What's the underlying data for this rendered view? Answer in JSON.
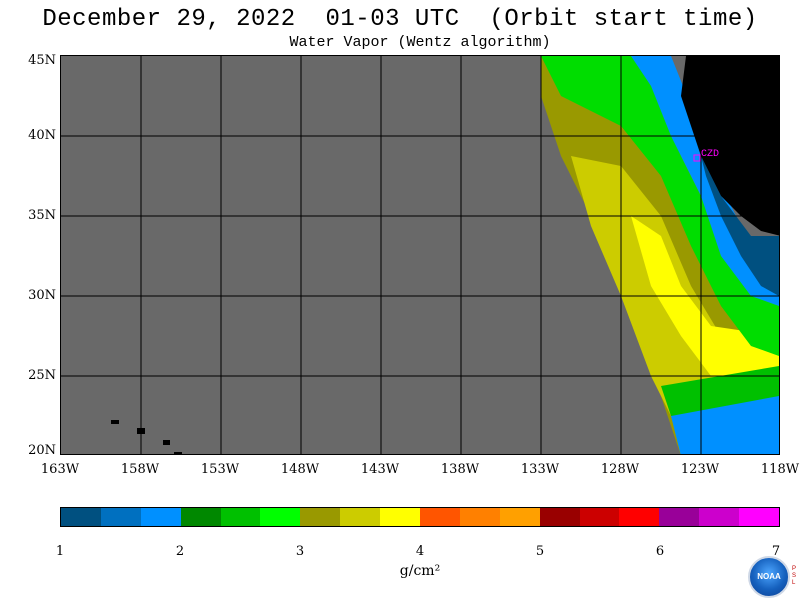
{
  "title": "December 29, 2022  01-03 UTC  (Orbit start time)",
  "subtitle": "Water Vapor (Wentz algorithm)",
  "map": {
    "background_color": "#696969",
    "land_color": "#000000",
    "grid_color": "#000000",
    "station_marker": {
      "label": "CZD",
      "color": "#ff00ff",
      "lon": -123.1,
      "lat": 38.5
    },
    "lat_labels": [
      "45N",
      "40N",
      "35N",
      "30N",
      "25N",
      "20N"
    ],
    "lon_labels": [
      "163W",
      "158W",
      "153W",
      "148W",
      "143W",
      "138W",
      "133W",
      "128W",
      "123W",
      "118W"
    ],
    "swath_bands": [
      {
        "name": "band-green-outer",
        "color": "#00dd00"
      },
      {
        "name": "band-olive",
        "color": "#999900"
      },
      {
        "name": "band-yellow-green",
        "color": "#cccc00"
      },
      {
        "name": "band-yellow",
        "color": "#ffff00"
      },
      {
        "name": "band-blue",
        "color": "#0080ff"
      },
      {
        "name": "band-dark-blue",
        "color": "#005080"
      }
    ]
  },
  "colorbar": {
    "colors": [
      "#005080",
      "#0070c0",
      "#0090ff",
      "#008800",
      "#00c000",
      "#00ff00",
      "#999900",
      "#cccc00",
      "#ffff00",
      "#ff5500",
      "#ff8000",
      "#ffa000",
      "#990000",
      "#cc0000",
      "#ff0000",
      "#990099",
      "#cc00cc",
      "#ff00ff"
    ],
    "ticks": [
      "1",
      "2",
      "3",
      "4",
      "5",
      "6",
      "7"
    ],
    "units": "g/cm²"
  },
  "logo": {
    "text": "NOAA",
    "side_text": [
      "P",
      "S",
      "L"
    ]
  }
}
